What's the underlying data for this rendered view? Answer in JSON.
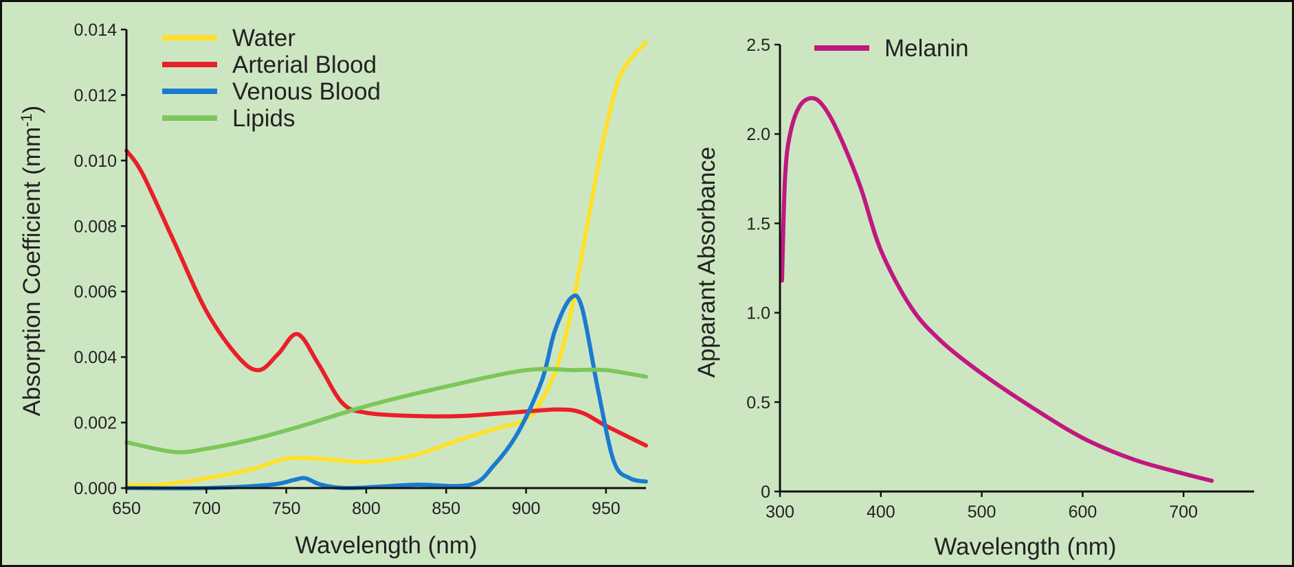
{
  "chart_data": [
    {
      "type": "line",
      "title": "",
      "xlabel": "Wavelength (nm)",
      "ylabel": "Absorption Coefficient (mm",
      "ylabel_sup": "-1",
      "ylabel_tail": ")",
      "xlim": [
        650,
        975
      ],
      "ylim": [
        0,
        0.014
      ],
      "x_ticks": [
        650,
        700,
        750,
        800,
        850,
        900,
        950
      ],
      "x_tick_labels": [
        "650",
        "700",
        "750",
        "800",
        "850",
        "900",
        "950"
      ],
      "y_ticks": [
        0,
        0.002,
        0.004,
        0.006,
        0.008,
        0.01,
        0.012,
        0.014
      ],
      "y_tick_labels": [
        "0.000",
        "0.002",
        "0.004",
        "0.006",
        "0.008",
        "0.010",
        "0.012",
        "0.014"
      ],
      "grid": false,
      "legend_position": "top-left",
      "series": [
        {
          "name": "Water",
          "color": "#ffe02a",
          "x": [
            650,
            670,
            700,
            730,
            750,
            770,
            800,
            830,
            860,
            880,
            900,
            910,
            920,
            930,
            940,
            950,
            960,
            975
          ],
          "y": [
            0.0001,
            0.0001,
            0.0003,
            0.0006,
            0.0009,
            0.0009,
            0.0008,
            0.001,
            0.0015,
            0.0018,
            0.0021,
            0.0027,
            0.0038,
            0.0058,
            0.0085,
            0.011,
            0.0127,
            0.0136
          ]
        },
        {
          "name": "Arterial Blood",
          "color": "#e8202a",
          "x": [
            650,
            660,
            680,
            700,
            720,
            733,
            745,
            757,
            770,
            785,
            800,
            830,
            860,
            890,
            920,
            935,
            950,
            975
          ],
          "y": [
            0.0103,
            0.0096,
            0.0075,
            0.0054,
            0.004,
            0.0036,
            0.0041,
            0.0047,
            0.0038,
            0.0026,
            0.0023,
            0.0022,
            0.0022,
            0.0023,
            0.0024,
            0.0023,
            0.0019,
            0.0013
          ]
        },
        {
          "name": "Venous Blood",
          "color": "#1a7bd0",
          "x": [
            650,
            700,
            740,
            755,
            762,
            772,
            790,
            830,
            865,
            880,
            895,
            910,
            918,
            928,
            935,
            945,
            955,
            965,
            975
          ],
          "y": [
            0.0,
            0.0,
            0.0001,
            0.00025,
            0.0003,
            0.0001,
            0.0,
            0.0001,
            0.0001,
            0.0007,
            0.0017,
            0.0033,
            0.0048,
            0.0058,
            0.0055,
            0.003,
            0.0008,
            0.0003,
            0.0002
          ]
        },
        {
          "name": "Lipids",
          "color": "#7cc75a",
          "x": [
            650,
            680,
            700,
            730,
            760,
            800,
            850,
            900,
            930,
            950,
            975
          ],
          "y": [
            0.0014,
            0.0011,
            0.0012,
            0.0015,
            0.0019,
            0.0025,
            0.0031,
            0.0036,
            0.0036,
            0.0036,
            0.0034
          ]
        }
      ]
    },
    {
      "type": "line",
      "title": "",
      "xlabel": "Wavelength (nm)",
      "ylabel": "Apparant Absorbance",
      "xlim": [
        300,
        770
      ],
      "ylim": [
        0,
        2.5
      ],
      "x_ticks": [
        300,
        400,
        500,
        600,
        700
      ],
      "x_tick_labels": [
        "300",
        "400",
        "500",
        "600",
        "700"
      ],
      "y_ticks": [
        0,
        0.5,
        1.0,
        1.5,
        2.0,
        2.5
      ],
      "y_tick_labels": [
        "0",
        "0.5",
        "1.0",
        "1.5",
        "2.0",
        "2.5"
      ],
      "grid": false,
      "legend_position": "top-left",
      "series": [
        {
          "name": "Melanin",
          "color": "#c01880",
          "x": [
            302,
            305,
            310,
            320,
            333,
            345,
            360,
            380,
            400,
            430,
            460,
            500,
            550,
            600,
            650,
            700,
            728
          ],
          "y": [
            1.18,
            1.75,
            2.0,
            2.16,
            2.2,
            2.14,
            1.98,
            1.7,
            1.35,
            1.03,
            0.84,
            0.66,
            0.47,
            0.3,
            0.18,
            0.1,
            0.06
          ]
        }
      ]
    }
  ]
}
